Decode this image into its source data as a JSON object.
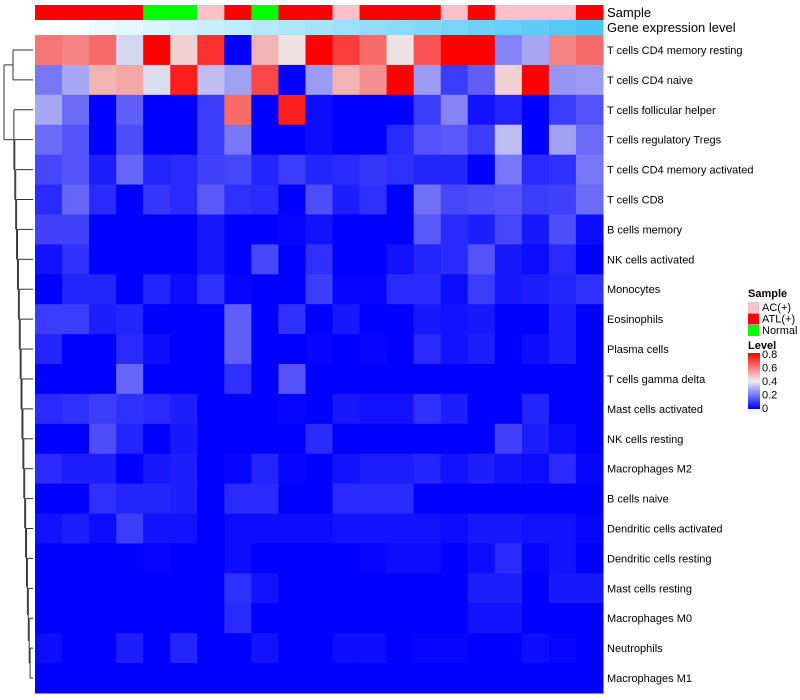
{
  "chart_data": {
    "type": "heatmap",
    "annotation_labels": [
      "Sample",
      "Gene expression level"
    ],
    "sample_groups": [
      "ATL(+)",
      "ATL(+)",
      "ATL(+)",
      "ATL(+)",
      "Normal",
      "Normal",
      "AC(+)",
      "ATL(+)",
      "Normal",
      "ATL(+)",
      "ATL(+)",
      "AC(+)",
      "ATL(+)",
      "ATL(+)",
      "ATL(+)",
      "AC(+)",
      "ATL(+)",
      "AC(+)",
      "AC(+)",
      "AC(+)",
      "ATL(+)"
    ],
    "gene_expression_rank": [
      0,
      1,
      2,
      3,
      4,
      5,
      6,
      7,
      8,
      9,
      10,
      11,
      12,
      13,
      14,
      15,
      16,
      17,
      18,
      19,
      20
    ],
    "rows": [
      "T cells CD4 memory resting",
      "T cells CD4 naive",
      "T cells follicular helper",
      "T cells regulatory  Tregs",
      "T cells CD4 memory activated",
      "T cells CD8",
      "B cells memory",
      "NK cells activated",
      "Monocytes",
      "Eosinophils",
      "Plasma cells",
      "T cells gamma delta",
      "Mast cells activated",
      "NK cells resting",
      "Macrophages M2",
      "B cells naive",
      "Dendritic cells activated",
      "Dendritic cells resting",
      "Mast cells resting",
      "Macrophages M0",
      "Neutrophils",
      "Macrophages M1"
    ],
    "values": [
      [
        0.6,
        0.58,
        0.62,
        0.36,
        0.8,
        0.45,
        0.72,
        0.0,
        0.5,
        0.42,
        0.8,
        0.7,
        0.62,
        0.42,
        0.66,
        0.8,
        0.8,
        0.22,
        0.28,
        0.58,
        0.62
      ],
      [
        0.2,
        0.28,
        0.5,
        0.52,
        0.37,
        0.75,
        0.32,
        0.27,
        0.68,
        0.0,
        0.26,
        0.5,
        0.56,
        0.8,
        0.26,
        0.1,
        0.16,
        0.45,
        0.8,
        0.25,
        0.26
      ],
      [
        0.28,
        0.18,
        0,
        0.16,
        0,
        0,
        0.1,
        0.62,
        0,
        0.75,
        0.02,
        0,
        0,
        0,
        0.1,
        0.22,
        0.03,
        0.06,
        0,
        0.1,
        0.14
      ],
      [
        0.18,
        0.14,
        0,
        0.13,
        0,
        0,
        0.1,
        0.2,
        0,
        0,
        0.02,
        0,
        0,
        0.07,
        0.14,
        0.15,
        0.1,
        0.32,
        0,
        0.27,
        0.18
      ],
      [
        0.12,
        0.14,
        0.05,
        0.17,
        0.06,
        0.07,
        0.11,
        0.12,
        0.06,
        0.1,
        0.06,
        0.07,
        0.09,
        0.08,
        0.06,
        0.06,
        0,
        0.2,
        0.07,
        0.08,
        0.2
      ],
      [
        0.07,
        0.17,
        0.07,
        0,
        0.09,
        0.07,
        0.15,
        0.08,
        0.07,
        0,
        0.13,
        0.05,
        0.08,
        0,
        0.19,
        0.12,
        0.13,
        0.14,
        0.1,
        0.11,
        0.18
      ],
      [
        0.11,
        0.11,
        0,
        0,
        0,
        0,
        0.04,
        0,
        0,
        0.01,
        0.03,
        0,
        0,
        0,
        0.15,
        0.07,
        0.05,
        0.12,
        0.04,
        0.13,
        0.02
      ],
      [
        0.03,
        0.08,
        0,
        0,
        0,
        0,
        0.04,
        0,
        0.12,
        0,
        0.08,
        0,
        0,
        0.03,
        0.06,
        0.07,
        0.14,
        0.04,
        0.02,
        0.07,
        0
      ],
      [
        0,
        0.06,
        0.06,
        0,
        0.06,
        0.02,
        0.08,
        0.01,
        0,
        0,
        0.1,
        0.01,
        0.01,
        0.07,
        0.07,
        0.02,
        0.1,
        0.04,
        0.05,
        0.06,
        0.08
      ],
      [
        0.1,
        0.1,
        0.05,
        0.06,
        0,
        0,
        0,
        0.16,
        0,
        0.08,
        0,
        0.04,
        0,
        0,
        0.04,
        0.03,
        0.04,
        0,
        0,
        0.05,
        0
      ],
      [
        0.06,
        0,
        0,
        0.07,
        0.02,
        0,
        0,
        0.16,
        0,
        0,
        0.01,
        0,
        0.01,
        0,
        0.07,
        0.03,
        0.05,
        0,
        0.02,
        0.05,
        0
      ],
      [
        0,
        0,
        0,
        0.17,
        0,
        0,
        0,
        0.08,
        0,
        0.14,
        0,
        0,
        0,
        0,
        0,
        0,
        0,
        0,
        0,
        0,
        0
      ],
      [
        0.07,
        0.08,
        0.1,
        0.08,
        0.07,
        0.05,
        0,
        0,
        0,
        0.01,
        0,
        0.04,
        0.03,
        0.03,
        0.08,
        0.05,
        0,
        0,
        0.06,
        0,
        0
      ],
      [
        0,
        0,
        0.13,
        0.06,
        0,
        0.04,
        0,
        0,
        0,
        0,
        0.07,
        0,
        0,
        0,
        0,
        0,
        0,
        0.11,
        0.05,
        0.02,
        0
      ],
      [
        0.07,
        0.05,
        0.05,
        0,
        0.04,
        0.05,
        0,
        0.01,
        0.06,
        0.01,
        0,
        0.03,
        0.05,
        0.05,
        0.06,
        0.03,
        0.05,
        0.03,
        0.02,
        0.07,
        0.01
      ],
      [
        0,
        0,
        0.08,
        0.06,
        0.06,
        0.05,
        0,
        0.07,
        0.07,
        0,
        0,
        0.07,
        0.07,
        0.07,
        0,
        0,
        0,
        0,
        0,
        0,
        0
      ],
      [
        0.03,
        0.05,
        0.02,
        0.1,
        0.03,
        0.03,
        0,
        0.02,
        0.02,
        0.02,
        0.02,
        0.03,
        0.03,
        0.03,
        0.03,
        0.02,
        0.04,
        0.04,
        0.03,
        0.03,
        0.01
      ],
      [
        0,
        0,
        0,
        0,
        0.01,
        0,
        0,
        0.02,
        0,
        0,
        0,
        0,
        0.01,
        0.02,
        0.02,
        0,
        0.02,
        0.07,
        0.01,
        0.03,
        0
      ],
      [
        0,
        0,
        0,
        0,
        0,
        0,
        0,
        0.08,
        0.03,
        0,
        0,
        0,
        0,
        0,
        0,
        0,
        0.05,
        0.05,
        0,
        0.04,
        0.04
      ],
      [
        0,
        0,
        0,
        0,
        0,
        0,
        0,
        0.07,
        0,
        0,
        0,
        0,
        0,
        0,
        0,
        0,
        0.03,
        0.03,
        0,
        0,
        0
      ],
      [
        0.02,
        0,
        0,
        0.05,
        0,
        0.06,
        0,
        0,
        0.03,
        0,
        0,
        0.02,
        0.02,
        0,
        0.01,
        0.01,
        0,
        0,
        0.02,
        0.01,
        0
      ],
      [
        0,
        0,
        0,
        0,
        0,
        0,
        0,
        0,
        0,
        0,
        0,
        0,
        0,
        0,
        0,
        0,
        0,
        0,
        0,
        0,
        0
      ]
    ],
    "color_range": [
      0,
      0.8
    ],
    "colors": {
      "low": "#0000FF",
      "mid": "#EEEEEE",
      "high": "#FF0000",
      "gene_low": "#FFFFFF",
      "gene_high": "#4CC6F6"
    },
    "legend": {
      "position": "right",
      "sample_title": "Sample",
      "sample_entries": [
        {
          "label": "AC(+)",
          "color": "#FFC0CB"
        },
        {
          "label": "ATL(+)",
          "color": "#FF0000"
        },
        {
          "label": "Normal",
          "color": "#00FF00"
        }
      ],
      "level_title": "Level",
      "level_ticks": [
        "0.8",
        "0.6",
        "0.4",
        "0.2",
        "0"
      ]
    }
  }
}
